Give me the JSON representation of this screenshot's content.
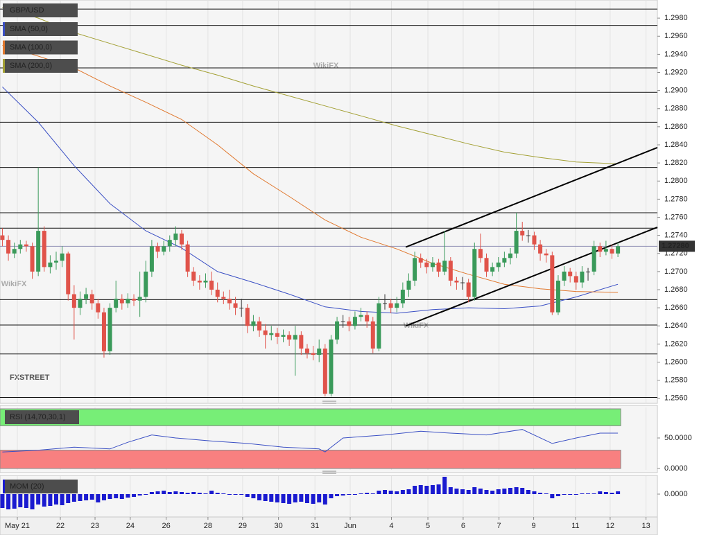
{
  "chart_data": [
    {
      "type": "candlestick",
      "title": "GBP/USD",
      "watermark": "WikiFX",
      "logo": "FXSTREET",
      "up_color": "#3a9a5a",
      "down_color": "#e0534a",
      "level_color": "#111111",
      "xlim": [
        -0.4,
        109.6
      ],
      "ylim": [
        1.2556,
        1.3
      ],
      "yticks": [
        {
          "value": 1.256,
          "label": "1.2560"
        },
        {
          "value": 1.258,
          "label": "1.2580"
        },
        {
          "value": 1.26,
          "label": "1.2600"
        },
        {
          "value": 1.262,
          "label": "1.2620"
        },
        {
          "value": 1.264,
          "label": "1.2640"
        },
        {
          "value": 1.266,
          "label": "1.2660"
        },
        {
          "value": 1.268,
          "label": "1.2680"
        },
        {
          "value": 1.27,
          "label": "1.2700"
        },
        {
          "value": 1.272,
          "label": "1.2720"
        },
        {
          "value": 1.274,
          "label": "1.2740"
        },
        {
          "value": 1.276,
          "label": "1.2760"
        },
        {
          "value": 1.278,
          "label": "1.2780"
        },
        {
          "value": 1.28,
          "label": "1.2800"
        },
        {
          "value": 1.282,
          "label": "1.2820"
        },
        {
          "value": 1.284,
          "label": "1.2840"
        },
        {
          "value": 1.286,
          "label": "1.2860"
        },
        {
          "value": 1.288,
          "label": "1.2880"
        },
        {
          "value": 1.29,
          "label": "1.2900"
        },
        {
          "value": 1.292,
          "label": "1.2920"
        },
        {
          "value": 1.294,
          "label": "1.2940"
        },
        {
          "value": 1.296,
          "label": "1.2960"
        },
        {
          "value": 1.298,
          "label": "1.2980"
        }
      ],
      "xticks": [
        {
          "value": 2.5,
          "label": "May 21"
        },
        {
          "value": 9.7,
          "label": "22"
        },
        {
          "value": 15.5,
          "label": "23"
        },
        {
          "value": 21.4,
          "label": "24"
        },
        {
          "value": 27.4,
          "label": "26"
        },
        {
          "value": 34.4,
          "label": "28"
        },
        {
          "value": 40.2,
          "label": "29"
        },
        {
          "value": 46.2,
          "label": "30"
        },
        {
          "value": 52.3,
          "label": "31"
        },
        {
          "value": 58.2,
          "label": "Jun"
        },
        {
          "value": 65.1,
          "label": "4"
        },
        {
          "value": 71.2,
          "label": "5"
        },
        {
          "value": 77.1,
          "label": "6"
        },
        {
          "value": 83.1,
          "label": "7"
        },
        {
          "value": 88.9,
          "label": "9"
        },
        {
          "value": 95.9,
          "label": "11"
        },
        {
          "value": 101.7,
          "label": "12"
        },
        {
          "value": 107.7,
          "label": "13"
        }
      ],
      "last_price": {
        "value": 1.2728,
        "label": "1.27280"
      },
      "levels": [
        1.299,
        1.2972,
        1.2925,
        1.2898,
        1.2865,
        1.2815,
        1.2765,
        1.2748,
        1.2669,
        1.2641,
        1.2609,
        1.2561
      ],
      "trendlines": [
        {
          "x": [
            67.5,
            109.6
          ],
          "values": [
            1.2727,
            1.2837
          ]
        },
        {
          "x": [
            67.5,
            109.6
          ],
          "values": [
            1.264,
            1.2749
          ]
        }
      ],
      "series": [
        {
          "name": "SMA (50,0)",
          "color": "#3a4fc4",
          "x": [
            0,
            6,
            12,
            18,
            24,
            30,
            36,
            42,
            48,
            54,
            60,
            66,
            72,
            78,
            84,
            90,
            96,
            103
          ],
          "values": [
            1.2904,
            1.2865,
            1.2817,
            1.2775,
            1.2745,
            1.2726,
            1.27,
            1.2688,
            1.2675,
            1.2661,
            1.2656,
            1.2654,
            1.2658,
            1.266,
            1.2659,
            1.2662,
            1.2672,
            1.2686
          ]
        },
        {
          "name": "SMA (100,0)",
          "color": "#e0782e",
          "x": [
            0,
            6,
            12,
            18,
            24,
            30,
            36,
            42,
            48,
            54,
            60,
            66,
            72,
            78,
            84,
            90,
            96,
            103
          ],
          "values": [
            1.295,
            1.2938,
            1.2925,
            1.2905,
            1.2887,
            1.2868,
            1.284,
            1.2808,
            1.2783,
            1.2757,
            1.2738,
            1.2725,
            1.2709,
            1.2697,
            1.2686,
            1.2681,
            1.2678,
            1.2677
          ]
        },
        {
          "name": "SMA (200,0)",
          "color": "#a3a034",
          "x": [
            0,
            6,
            12,
            18,
            24,
            30,
            36,
            42,
            48,
            54,
            60,
            66,
            72,
            78,
            84,
            90,
            96,
            103
          ],
          "values": [
            1.2992,
            1.298,
            1.2964,
            1.2952,
            1.294,
            1.2928,
            1.2917,
            1.2905,
            1.2894,
            1.2883,
            1.2872,
            1.2861,
            1.2851,
            1.2841,
            1.2832,
            1.2826,
            1.2821,
            1.2819
          ]
        }
      ],
      "ohlc": [
        [
          1.274,
          1.2748,
          1.2728,
          1.2735
        ],
        [
          1.2735,
          1.274,
          1.2712,
          1.272
        ],
        [
          1.272,
          1.2732,
          1.2715,
          1.2725
        ],
        [
          1.2725,
          1.2735,
          1.272,
          1.273
        ],
        [
          1.273,
          1.2734,
          1.2722,
          1.2728
        ],
        [
          1.2728,
          1.2732,
          1.2692,
          1.27
        ],
        [
          1.27,
          1.2815,
          1.2695,
          1.2745
        ],
        [
          1.2745,
          1.275,
          1.27,
          1.2705
        ],
        [
          1.2705,
          1.2718,
          1.2698,
          1.271
        ],
        [
          1.271,
          1.2722,
          1.2702,
          1.2712
        ],
        [
          1.2712,
          1.2728,
          1.2705,
          1.272
        ],
        [
          1.272,
          1.2722,
          1.2668,
          1.2675
        ],
        [
          1.2675,
          1.2685,
          1.2625,
          1.266
        ],
        [
          1.266,
          1.2678,
          1.2652,
          1.267
        ],
        [
          1.267,
          1.2682,
          1.2664,
          1.2675
        ],
        [
          1.2675,
          1.268,
          1.2658,
          1.2665
        ],
        [
          1.2665,
          1.267,
          1.2648,
          1.2655
        ],
        [
          1.2655,
          1.266,
          1.2605,
          1.2612
        ],
        [
          1.2612,
          1.2665,
          1.2608,
          1.266
        ],
        [
          1.266,
          1.269,
          1.2655,
          1.267
        ],
        [
          1.267,
          1.2675,
          1.2658,
          1.2665
        ],
        [
          1.2665,
          1.2676,
          1.266,
          1.267
        ],
        [
          1.267,
          1.2675,
          1.2662,
          1.2668
        ],
        [
          1.2668,
          1.27,
          1.265,
          1.2672
        ],
        [
          1.2672,
          1.2712,
          1.2666,
          1.27
        ],
        [
          1.27,
          1.2735,
          1.2694,
          1.2728
        ],
        [
          1.2728,
          1.2732,
          1.2715,
          1.2722
        ],
        [
          1.2722,
          1.2734,
          1.2718,
          1.2728
        ],
        [
          1.2728,
          1.274,
          1.2722,
          1.2735
        ],
        [
          1.2735,
          1.275,
          1.2728,
          1.2742
        ],
        [
          1.2742,
          1.2746,
          1.2724,
          1.273
        ],
        [
          1.273,
          1.2734,
          1.2694,
          1.27
        ],
        [
          1.27,
          1.2705,
          1.2684,
          1.269
        ],
        [
          1.269,
          1.2696,
          1.268,
          1.2688
        ],
        [
          1.2688,
          1.2698,
          1.2682,
          1.269
        ],
        [
          1.269,
          1.27,
          1.2674,
          1.268
        ],
        [
          1.268,
          1.2688,
          1.2666,
          1.2672
        ],
        [
          1.2672,
          1.2678,
          1.2664,
          1.267
        ],
        [
          1.267,
          1.268,
          1.2658,
          1.2665
        ],
        [
          1.2665,
          1.2672,
          1.2652,
          1.266
        ],
        [
          1.266,
          1.267,
          1.265,
          1.266
        ],
        [
          1.266,
          1.2664,
          1.2632,
          1.264
        ],
        [
          1.264,
          1.2652,
          1.2634,
          1.2645
        ],
        [
          1.2645,
          1.265,
          1.2628,
          1.2635
        ],
        [
          1.2635,
          1.2642,
          1.2615,
          1.263
        ],
        [
          1.263,
          1.264,
          1.2624,
          1.2632
        ],
        [
          1.2632,
          1.2638,
          1.262,
          1.2628
        ],
        [
          1.2628,
          1.2636,
          1.2622,
          1.263
        ],
        [
          1.263,
          1.2634,
          1.2618,
          1.2625
        ],
        [
          1.2625,
          1.264,
          1.2585,
          1.263
        ],
        [
          1.263,
          1.2634,
          1.2608,
          1.2615
        ],
        [
          1.2615,
          1.262,
          1.2604,
          1.261
        ],
        [
          1.261,
          1.2618,
          1.2602,
          1.2608
        ],
        [
          1.2608,
          1.2625,
          1.26,
          1.2615
        ],
        [
          1.2615,
          1.262,
          1.2562,
          1.2565
        ],
        [
          1.2565,
          1.263,
          1.2562,
          1.2625
        ],
        [
          1.2625,
          1.265,
          1.262,
          1.2645
        ],
        [
          1.2645,
          1.2652,
          1.2638,
          1.2645
        ],
        [
          1.2645,
          1.265,
          1.2634,
          1.264
        ],
        [
          1.264,
          1.2656,
          1.2636,
          1.265
        ],
        [
          1.265,
          1.266,
          1.2645,
          1.2652
        ],
        [
          1.2652,
          1.2656,
          1.2638,
          1.2645
        ],
        [
          1.2645,
          1.265,
          1.261,
          1.2615
        ],
        [
          1.2615,
          1.2672,
          1.2612,
          1.2665
        ],
        [
          1.2665,
          1.2675,
          1.2658,
          1.2665
        ],
        [
          1.2665,
          1.267,
          1.2654,
          1.266
        ],
        [
          1.266,
          1.2672,
          1.2655,
          1.2665
        ],
        [
          1.2665,
          1.2688,
          1.266,
          1.268
        ],
        [
          1.268,
          1.2698,
          1.2672,
          1.269
        ],
        [
          1.269,
          1.2722,
          1.2684,
          1.2715
        ],
        [
          1.2715,
          1.272,
          1.2704,
          1.271
        ],
        [
          1.271,
          1.2714,
          1.2698,
          1.2705
        ],
        [
          1.2705,
          1.2716,
          1.27,
          1.271
        ],
        [
          1.271,
          1.2714,
          1.2694,
          1.27
        ],
        [
          1.27,
          1.2745,
          1.2696,
          1.2712
        ],
        [
          1.2712,
          1.2716,
          1.2684,
          1.269
        ],
        [
          1.269,
          1.2694,
          1.268,
          1.2688
        ],
        [
          1.2688,
          1.2694,
          1.268,
          1.2688
        ],
        [
          1.2688,
          1.2692,
          1.2666,
          1.2672
        ],
        [
          1.2672,
          1.2732,
          1.2668,
          1.2725
        ],
        [
          1.2725,
          1.2742,
          1.271,
          1.2715
        ],
        [
          1.2715,
          1.272,
          1.2694,
          1.27
        ],
        [
          1.27,
          1.271,
          1.2695,
          1.2705
        ],
        [
          1.2705,
          1.2716,
          1.27,
          1.271
        ],
        [
          1.271,
          1.2722,
          1.2705,
          1.2715
        ],
        [
          1.2715,
          1.2726,
          1.2708,
          1.272
        ],
        [
          1.272,
          1.2765,
          1.2715,
          1.2745
        ],
        [
          1.2745,
          1.2755,
          1.2734,
          1.274
        ],
        [
          1.274,
          1.2746,
          1.2732,
          1.274
        ],
        [
          1.274,
          1.2744,
          1.2724,
          1.273
        ],
        [
          1.273,
          1.2735,
          1.2712,
          1.272
        ],
        [
          1.272,
          1.2725,
          1.271,
          1.2718
        ],
        [
          1.2718,
          1.2722,
          1.2652,
          1.2655
        ],
        [
          1.2655,
          1.2696,
          1.2652,
          1.269
        ],
        [
          1.269,
          1.2706,
          1.2684,
          1.27
        ],
        [
          1.27,
          1.2704,
          1.2688,
          1.2695
        ],
        [
          1.2695,
          1.27,
          1.268,
          1.2688
        ],
        [
          1.2688,
          1.2706,
          1.2682,
          1.27
        ],
        [
          1.27,
          1.2704,
          1.269,
          1.27
        ],
        [
          1.27,
          1.2734,
          1.2696,
          1.2728
        ],
        [
          1.2728,
          1.2732,
          1.2716,
          1.2722
        ],
        [
          1.2722,
          1.2734,
          1.2718,
          1.2725
        ],
        [
          1.2725,
          1.273,
          1.2714,
          1.272
        ],
        [
          1.272,
          1.2732,
          1.2716,
          1.2728
        ]
      ]
    },
    {
      "type": "line",
      "title": "RSI (14,70,30,1)",
      "color": "#3a4fc4",
      "overbought": 70,
      "oversold": 30,
      "overbought_color": "#77ee77",
      "oversold_color": "#f88080",
      "xlim": [
        -0.4,
        109.6
      ],
      "ylim": [
        0,
        100
      ],
      "yticks": [
        {
          "value": 50,
          "label": "50.0000"
        },
        {
          "value": 0,
          "label": "0.0000"
        }
      ],
      "x": [
        0,
        6,
        12,
        18,
        21,
        25,
        29,
        35,
        41,
        47,
        53,
        54,
        57,
        64,
        70,
        75,
        81,
        87,
        92,
        96,
        100,
        103
      ],
      "values": [
        27,
        30,
        35,
        32,
        43,
        55,
        50,
        45,
        41,
        35,
        32,
        27,
        50,
        55,
        61,
        58,
        55,
        64,
        41,
        50,
        58,
        58
      ]
    },
    {
      "type": "bar",
      "title": "MOM (20)",
      "color": "#1a1ad0",
      "xlim": [
        -0.4,
        109.6
      ],
      "ylim": [
        -0.0064,
        0.0052
      ],
      "yticks": [
        {
          "value": 0,
          "label": "0.0000"
        }
      ],
      "values": [
        -0.004,
        -0.0044,
        -0.0042,
        -0.0038,
        -0.004,
        -0.0044,
        -0.003,
        -0.0036,
        -0.0034,
        -0.003,
        -0.0032,
        -0.0026,
        -0.0022,
        -0.002,
        -0.0018,
        -0.0016,
        -0.0024,
        -0.0018,
        -0.0014,
        -0.0012,
        -0.0014,
        -0.001,
        -0.0008,
        -0.0004,
        -0.0002,
        0.0006,
        0.0008,
        0.001,
        0.0006,
        0.0008,
        0.0006,
        0.0004,
        0.0006,
        0.0004,
        0.0002,
        0.001,
        0.0004,
        0.0002,
        0,
        -0.0002,
        -0.0002,
        -0.0008,
        -0.0012,
        -0.0018,
        -0.002,
        -0.0022,
        -0.0024,
        -0.0026,
        -0.0028,
        -0.0024,
        -0.0022,
        -0.0026,
        -0.0028,
        -0.0024,
        -0.003,
        -0.0012,
        -0.0006,
        -0.0004,
        -0.0002,
        -0.0002,
        0.0002,
        0.0004,
        0.0002,
        0.001,
        0.0012,
        0.001,
        0.0008,
        0.0012,
        0.0014,
        0.0024,
        0.0026,
        0.0024,
        0.0026,
        0.0028,
        0.005,
        0.002,
        0.0016,
        0.0014,
        0.0012,
        0.002,
        0.0016,
        0.0012,
        0.001,
        0.0014,
        0.0016,
        0.0018,
        0.002,
        0.0018,
        0.0012,
        0.0008,
        0.0004,
        0.0002,
        -0.0012,
        -0.0006,
        -0.0002,
        -0.0002,
        0,
        0.0002,
        0.0002,
        0.0002,
        0.0008,
        0.0006,
        0.0004,
        0.0008
      ]
    }
  ]
}
